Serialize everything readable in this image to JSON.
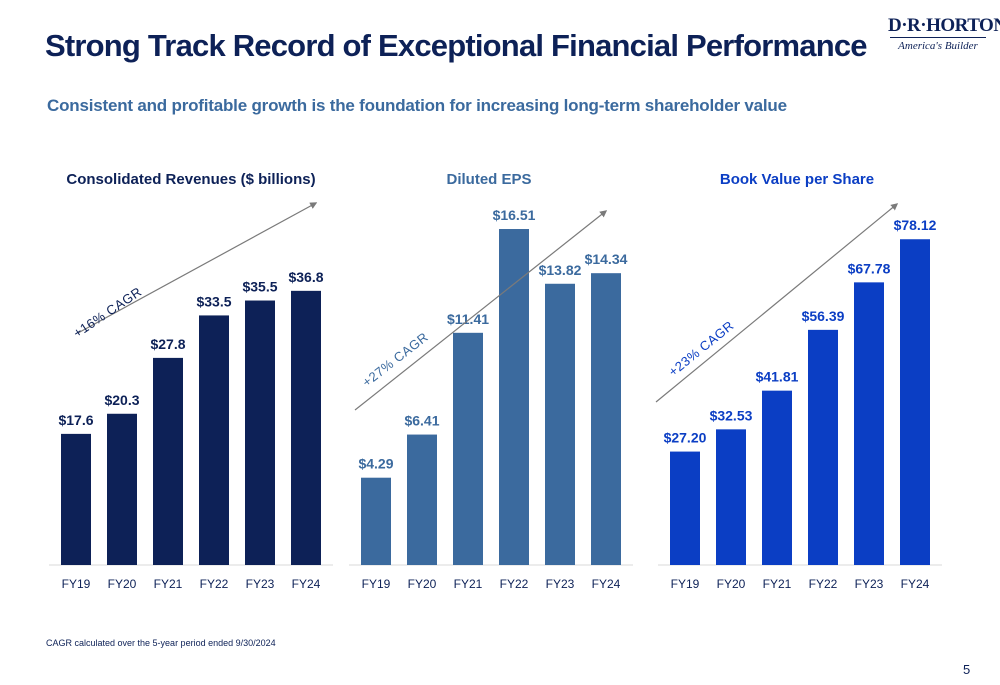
{
  "title": "Strong Track Record of Exceptional Financial Performance",
  "subtitle": "Consistent and profitable growth is the foundation for increasing long-term shareholder value",
  "logo": {
    "top": "D·R·HORTON",
    "bottom": "America's Builder"
  },
  "footnote": "CAGR calculated over the 5-year period ended 9/30/2024",
  "page_number": "5",
  "chart_data": [
    {
      "type": "bar",
      "title": "Consolidated Revenues ($ billions)",
      "categories": [
        "FY19",
        "FY20",
        "FY21",
        "FY22",
        "FY23",
        "FY24"
      ],
      "values": [
        17.6,
        20.3,
        27.8,
        33.5,
        35.5,
        36.8
      ],
      "labels": [
        "$17.6",
        "$20.3",
        "$27.8",
        "$33.5",
        "$35.5",
        "$36.8"
      ],
      "annotation": "+16% CAGR",
      "color": "#0d2157",
      "title_color": "#0d2157"
    },
    {
      "type": "bar",
      "title": "Diluted EPS",
      "categories": [
        "FY19",
        "FY20",
        "FY21",
        "FY22",
        "FY23",
        "FY24"
      ],
      "values": [
        4.29,
        6.41,
        11.41,
        16.51,
        13.82,
        14.34
      ],
      "labels": [
        "$4.29",
        "$6.41",
        "$11.41",
        "$16.51",
        "$13.82",
        "$14.34"
      ],
      "annotation": "+27% CAGR",
      "color": "#3b6a9e",
      "title_color": "#3b6a9e"
    },
    {
      "type": "bar",
      "title": "Book Value per Share",
      "categories": [
        "FY19",
        "FY20",
        "FY21",
        "FY22",
        "FY23",
        "FY24"
      ],
      "values": [
        27.2,
        32.53,
        41.81,
        56.39,
        67.78,
        78.12
      ],
      "labels": [
        "$27.20",
        "$32.53",
        "$41.81",
        "$56.39",
        "$67.78",
        "$78.12"
      ],
      "annotation": "+23% CAGR",
      "color": "#0b3ec4",
      "title_color": "#0b3ec4"
    }
  ]
}
